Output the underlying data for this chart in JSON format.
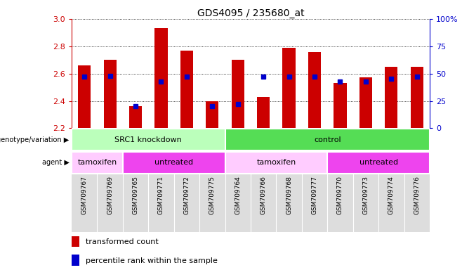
{
  "title": "GDS4095 / 235680_at",
  "samples": [
    "GSM709767",
    "GSM709769",
    "GSM709765",
    "GSM709771",
    "GSM709772",
    "GSM709775",
    "GSM709764",
    "GSM709766",
    "GSM709768",
    "GSM709777",
    "GSM709770",
    "GSM709773",
    "GSM709774",
    "GSM709776"
  ],
  "red_bars": [
    2.66,
    2.7,
    2.36,
    2.93,
    2.77,
    2.4,
    2.7,
    2.43,
    2.79,
    2.76,
    2.53,
    2.57,
    2.65,
    2.65
  ],
  "blue_markers": [
    47,
    48,
    20,
    43,
    47,
    20,
    22,
    47,
    47,
    47,
    43,
    43,
    45,
    47
  ],
  "ylim": [
    2.2,
    3.0
  ],
  "yticks": [
    2.2,
    2.4,
    2.6,
    2.8,
    3.0
  ],
  "right_yticks": [
    0,
    25,
    50,
    75,
    100
  ],
  "right_ylabels": [
    "0",
    "25",
    "50",
    "75",
    "100%"
  ],
  "bar_color": "#cc0000",
  "blue_color": "#0000cc",
  "geno_groups": [
    {
      "label": "SRC1 knockdown",
      "start": 0,
      "end": 5,
      "color": "#bbffbb"
    },
    {
      "label": "control",
      "start": 6,
      "end": 13,
      "color": "#55dd55"
    }
  ],
  "agent_groups": [
    {
      "label": "tamoxifen",
      "start": 0,
      "end": 1,
      "color": "#ffccff"
    },
    {
      "label": "untreated",
      "start": 2,
      "end": 5,
      "color": "#ee44ee"
    },
    {
      "label": "tamoxifen",
      "start": 6,
      "end": 9,
      "color": "#ffccff"
    },
    {
      "label": "untreated",
      "start": 10,
      "end": 13,
      "color": "#ee44ee"
    }
  ]
}
